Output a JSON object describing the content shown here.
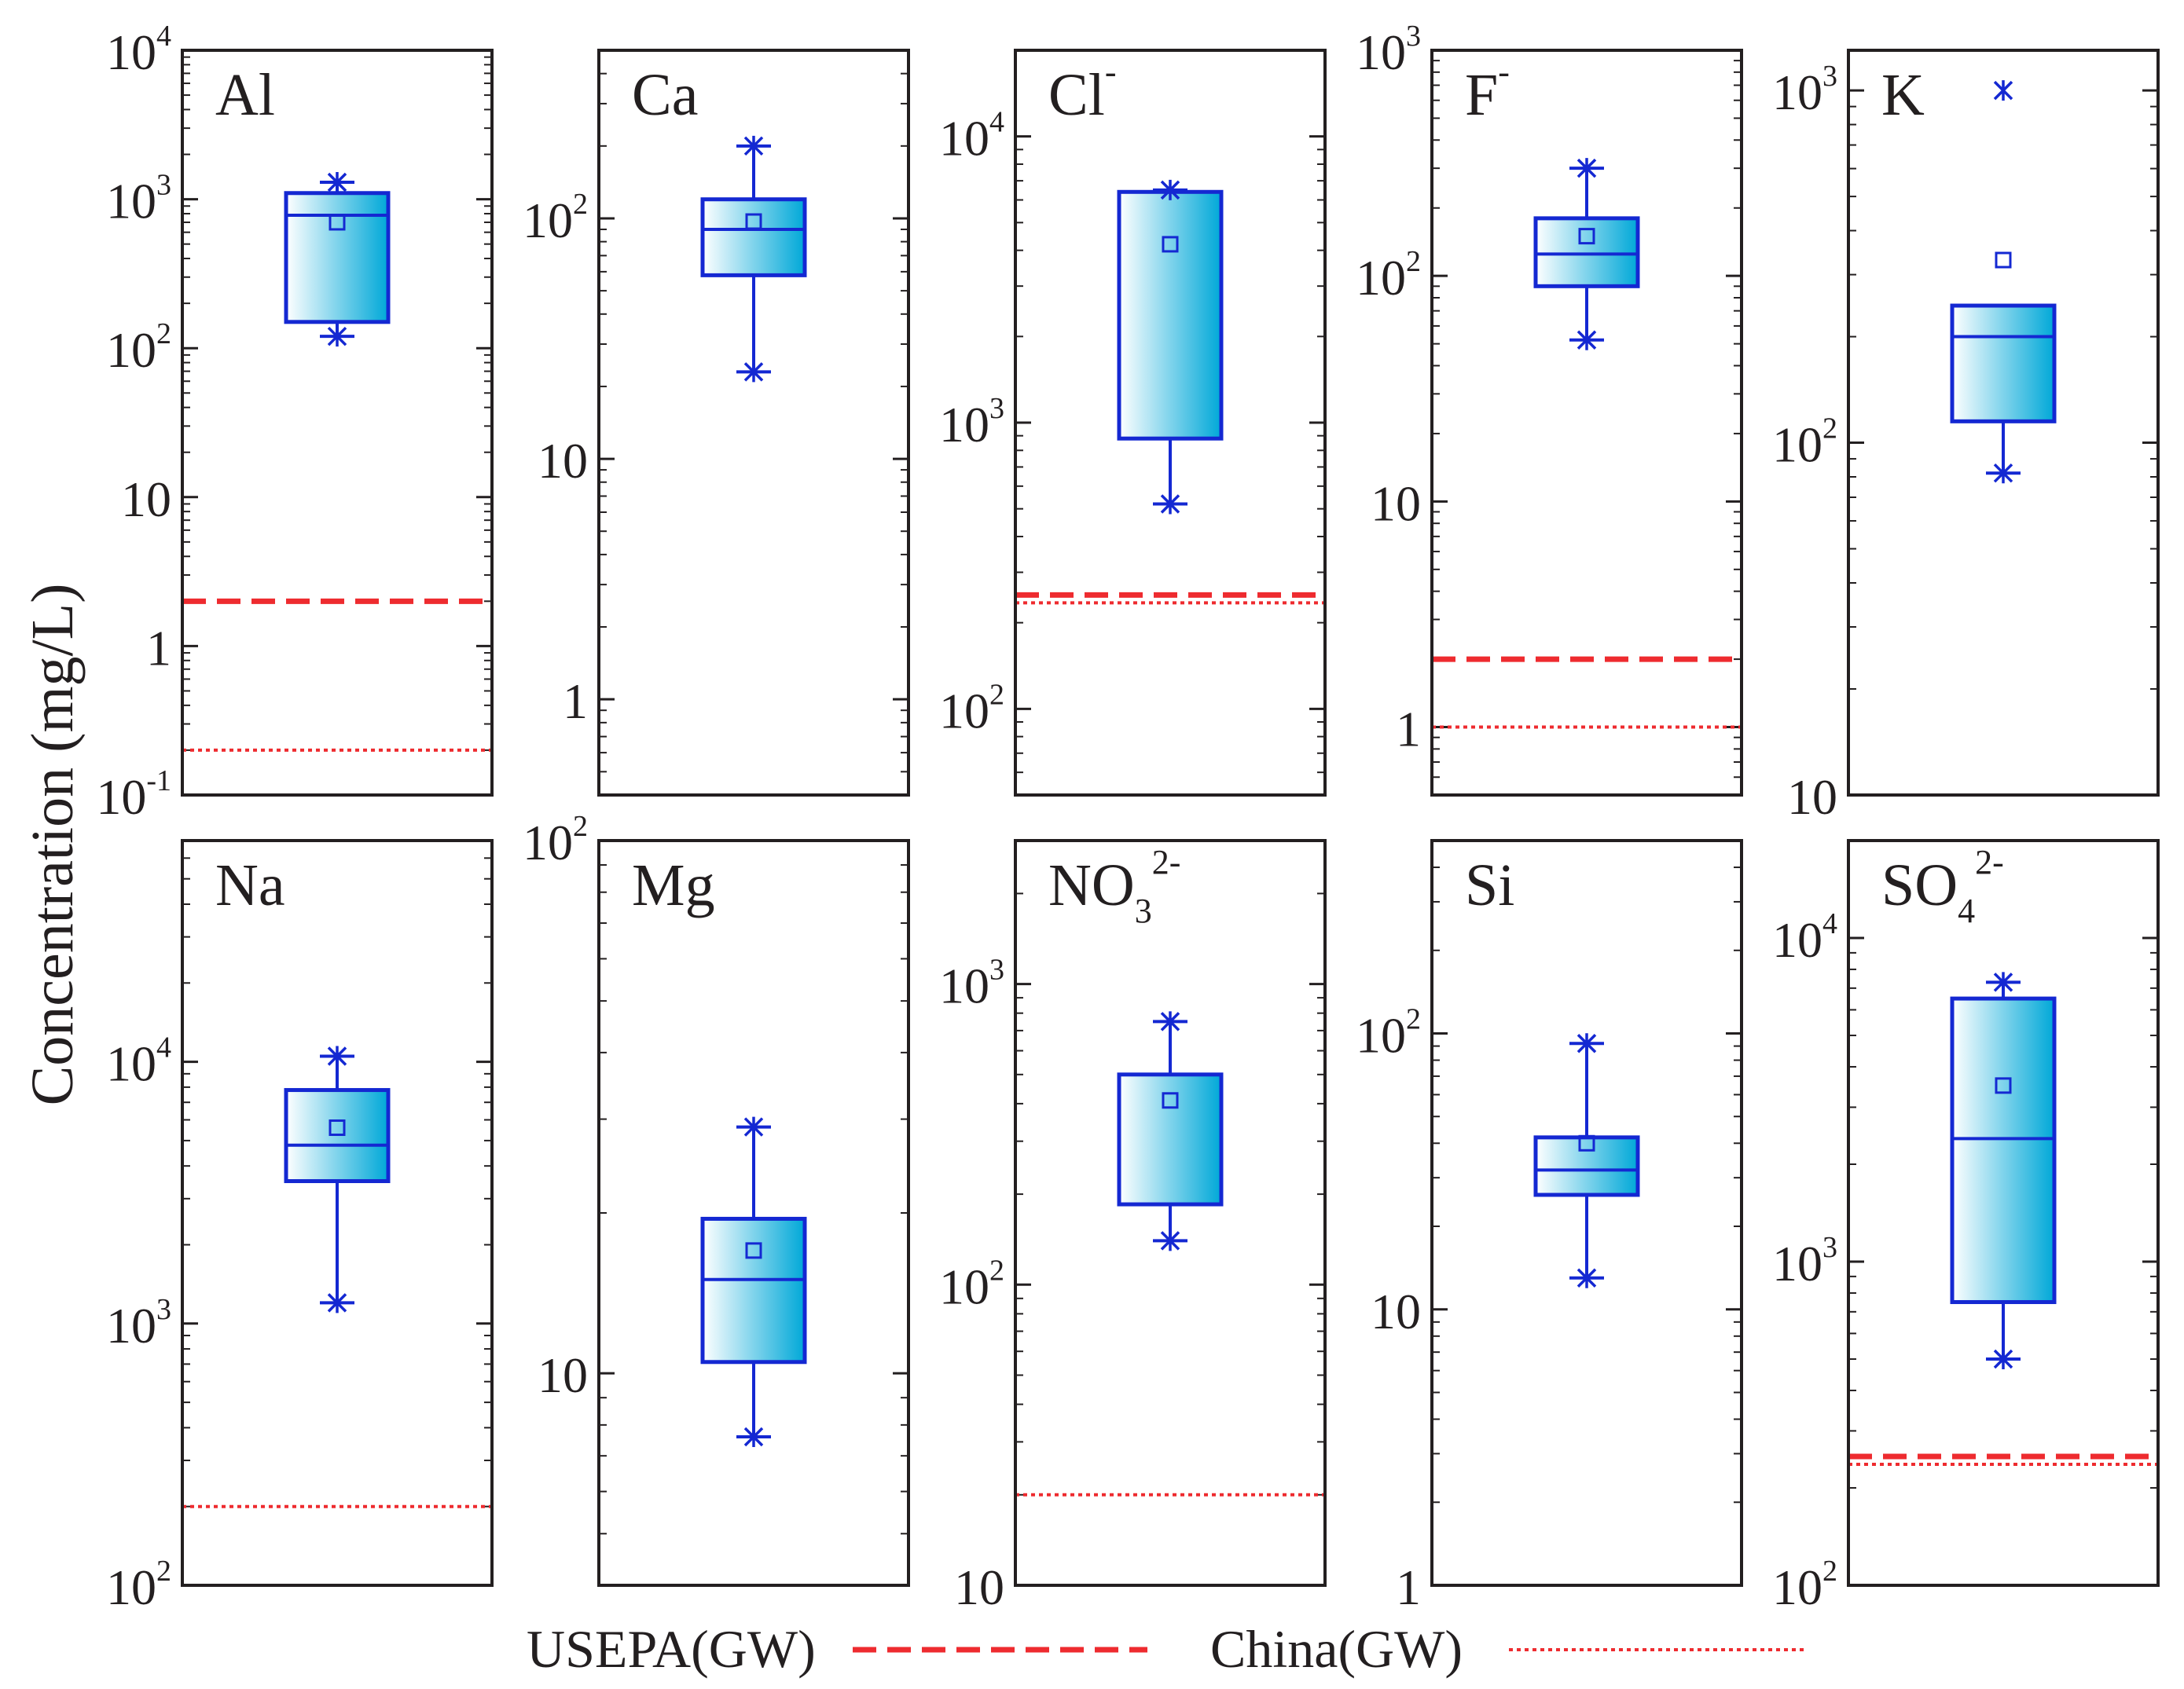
{
  "figure": {
    "ylabel": "Concentration (mg/L)",
    "legend": {
      "usepa_label": "USEPA(GW)",
      "china_label": "China(GW)"
    },
    "colors": {
      "box_stroke": "#1428d2",
      "fill_light": "#ffffff",
      "fill_dark": "#00a8d8",
      "usepa_line": "#ee2b2f",
      "china_line": "#ee2b2f",
      "axes": "#231f20"
    }
  },
  "chart_data": [
    {
      "type": "box",
      "title": "Al",
      "ylim": [
        0.1,
        10000
      ],
      "ticks": [
        {
          "v": 0.1,
          "b": "10",
          "e": "-1"
        },
        {
          "v": 1,
          "b": "1",
          "e": ""
        },
        {
          "v": 10,
          "b": "10",
          "e": ""
        },
        {
          "v": 100,
          "b": "10",
          "e": "2"
        },
        {
          "v": 1000,
          "b": "10",
          "e": "3"
        },
        {
          "v": 10000,
          "b": "10",
          "e": "4"
        }
      ],
      "box": {
        "min": 120,
        "q1": 150,
        "median": 780,
        "q3": 1100,
        "max": 1300,
        "mean": 700
      },
      "usepa": 2,
      "china": 0.2
    },
    {
      "type": "box",
      "title": "Ca",
      "ylim": [
        0.4,
        500
      ],
      "ticks": [
        {
          "v": 1,
          "b": "1",
          "e": ""
        },
        {
          "v": 10,
          "b": "10",
          "e": ""
        },
        {
          "v": 100,
          "b": "10",
          "e": "2"
        }
      ],
      "box": {
        "min": 23,
        "q1": 58,
        "median": 90,
        "q3": 120,
        "max": 200,
        "mean": 97
      }
    },
    {
      "type": "box",
      "title": "Cl",
      "title_sup": "-",
      "ylim": [
        50,
        20000
      ],
      "ticks": [
        {
          "v": 100,
          "b": "10",
          "e": "2"
        },
        {
          "v": 1000,
          "b": "10",
          "e": "3"
        },
        {
          "v": 10000,
          "b": "10",
          "e": "4"
        }
      ],
      "box": {
        "min": 520,
        "q1": 880,
        "median": 6400,
        "q3": 6400,
        "max": 6500,
        "mean": 4200
      },
      "usepa": 250,
      "china": 250
    },
    {
      "type": "box",
      "title": "F",
      "title_sup": "-",
      "ylim": [
        0.5,
        1000
      ],
      "ticks": [
        {
          "v": 1,
          "b": "1",
          "e": ""
        },
        {
          "v": 10,
          "b": "10",
          "e": ""
        },
        {
          "v": 100,
          "b": "10",
          "e": "2"
        },
        {
          "v": 1000,
          "b": "10",
          "e": "3"
        }
      ],
      "box": {
        "min": 52,
        "q1": 90,
        "median": 125,
        "q3": 180,
        "max": 300,
        "mean": 150
      },
      "usepa": 2,
      "china": 1
    },
    {
      "type": "box",
      "title": "K",
      "ylim": [
        10,
        1300
      ],
      "ticks": [
        {
          "v": 10,
          "b": "10",
          "e": ""
        },
        {
          "v": 100,
          "b": "10",
          "e": "2"
        },
        {
          "v": 1000,
          "b": "10",
          "e": "3"
        }
      ],
      "box": {
        "min": 82,
        "q1": 115,
        "median": 200,
        "q3": 245,
        "max": 1000,
        "mean": 330
      }
    },
    {
      "type": "box",
      "title": "Na",
      "ylim": [
        100,
        70000
      ],
      "ticks": [
        {
          "v": 100,
          "b": "10",
          "e": "2"
        },
        {
          "v": 1000,
          "b": "10",
          "e": "3"
        },
        {
          "v": 10000,
          "b": "10",
          "e": "4"
        }
      ],
      "box": {
        "min": 1200,
        "q1": 3500,
        "median": 4800,
        "q3": 7800,
        "max": 10500,
        "mean": 5600
      },
      "china": 200
    },
    {
      "type": "box",
      "title": "Mg",
      "ylim": [
        4,
        100
      ],
      "ticks": [
        {
          "v": 10,
          "b": "10",
          "e": ""
        },
        {
          "v": 100,
          "b": "10",
          "e": "2"
        }
      ],
      "box": {
        "min": 7.6,
        "q1": 10.5,
        "median": 15,
        "q3": 19.5,
        "max": 29,
        "mean": 17
      }
    },
    {
      "type": "box",
      "title": "NO",
      "title_sub": "3",
      "title_sup": "2-",
      "ylim": [
        10,
        3000
      ],
      "ticks": [
        {
          "v": 10,
          "b": "10",
          "e": ""
        },
        {
          "v": 100,
          "b": "10",
          "e": "2"
        },
        {
          "v": 1000,
          "b": "10",
          "e": "3"
        }
      ],
      "box": {
        "min": 140,
        "q1": 185,
        "median": 500,
        "q3": 500,
        "max": 750,
        "mean": 410
      },
      "china": 20
    },
    {
      "type": "box",
      "title": "Si",
      "ylim": [
        1,
        500
      ],
      "ticks": [
        {
          "v": 1,
          "b": "1",
          "e": ""
        },
        {
          "v": 10,
          "b": "10",
          "e": ""
        },
        {
          "v": 100,
          "b": "10",
          "e": "2"
        }
      ],
      "box": {
        "min": 13,
        "q1": 26,
        "median": 32,
        "q3": 42,
        "max": 92,
        "mean": 40
      }
    },
    {
      "type": "box",
      "title": "SO",
      "title_sub": "4",
      "title_sup": "2-",
      "ylim": [
        100,
        20000
      ],
      "ticks": [
        {
          "v": 100,
          "b": "10",
          "e": "2"
        },
        {
          "v": 1000,
          "b": "10",
          "e": "3"
        },
        {
          "v": 10000,
          "b": "10",
          "e": "4"
        }
      ],
      "box": {
        "min": 500,
        "q1": 750,
        "median": 2400,
        "q3": 6500,
        "max": 7300,
        "mean": 3500
      },
      "usepa": 250,
      "china": 250
    }
  ]
}
